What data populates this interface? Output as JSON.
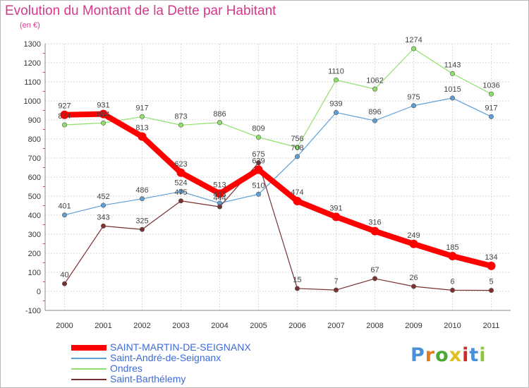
{
  "title": "Evolution du Montant de la Dette par Habitant",
  "unit": "(en €)",
  "brand": {
    "letters": [
      "P",
      "r",
      "o",
      "x",
      "i",
      "t",
      "i"
    ],
    "colors": [
      "#4a90d9",
      "#e07b20",
      "#4aa834",
      "#e0c020",
      "#d02a2a",
      "#4a90d9",
      "#8cc63f"
    ]
  },
  "chart_data": {
    "type": "line",
    "x": [
      "2000",
      "2001",
      "2002",
      "2003",
      "2004",
      "2005",
      "2006",
      "2007",
      "2008",
      "2009",
      "2010",
      "2011"
    ],
    "ylim": [
      -100,
      1300
    ],
    "yticks": [
      "-100",
      "0",
      "100",
      "200",
      "300",
      "400",
      "500",
      "600",
      "700",
      "800",
      "900",
      "1000",
      "1100",
      "1200",
      "1300"
    ],
    "grid": true,
    "legend_position": "bottom-left",
    "series": [
      {
        "name": "SAINT-MARTIN-DE-SEIGNANX",
        "color": "#ff0000",
        "values": [
          927,
          931,
          813,
          623,
          513,
          639,
          474,
          391,
          316,
          249,
          185,
          134
        ],
        "labels": [
          "927",
          "931",
          "813",
          "623",
          "513",
          "639",
          "474",
          "391",
          "316",
          "249",
          "185",
          "134"
        ]
      },
      {
        "name": "Saint-André-de-Seignanx",
        "color": "#5e9fd6",
        "values": [
          401,
          452,
          486,
          524,
          463,
          510,
          708,
          939,
          896,
          975,
          1015,
          917
        ],
        "labels": [
          "401",
          "452",
          "486",
          "524",
          "463",
          "510",
          "708",
          "939",
          "896",
          "975",
          "1015",
          "917"
        ]
      },
      {
        "name": "Ondres",
        "color": "#8fe06a",
        "values": [
          874,
          884,
          917,
          873,
          886,
          809,
          756,
          1110,
          1062,
          1274,
          1143,
          1036
        ],
        "labels": [
          "874",
          "884",
          "917",
          "873",
          "886",
          "809",
          "756",
          "1110",
          "1062",
          "1274",
          "1143",
          "1036"
        ]
      },
      {
        "name": "Saint-Barthélemy",
        "color": "#7a3030",
        "values": [
          40,
          343,
          325,
          475,
          444,
          675,
          15,
          7,
          67,
          26,
          6,
          5
        ],
        "labels": [
          "40",
          "343",
          "325",
          "475",
          "444",
          "675",
          "15",
          "7",
          "67",
          "26",
          "6",
          "5"
        ]
      }
    ]
  }
}
